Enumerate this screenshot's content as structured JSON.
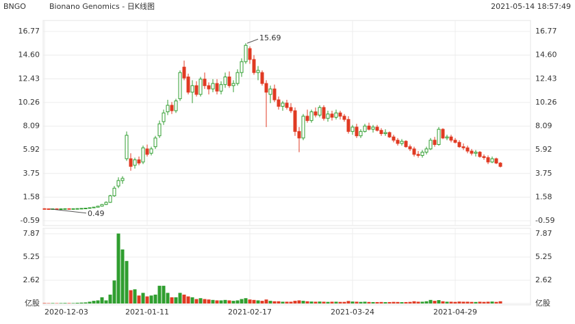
{
  "chart_data": {
    "type": "candlestick",
    "ticker": "BNGO",
    "title": "Bionano Genomics - 日K线图",
    "timestamp": "2021-05-14 18:57:49",
    "categories": [
      "2020-12-03",
      null,
      null,
      null,
      null,
      null,
      null,
      null,
      null,
      null,
      null,
      null,
      null,
      null,
      null,
      null,
      null,
      null,
      null,
      null,
      null,
      null,
      null,
      null,
      null,
      "2021-01-11",
      null,
      null,
      null,
      null,
      null,
      null,
      null,
      null,
      null,
      null,
      null,
      null,
      null,
      null,
      null,
      null,
      null,
      null,
      null,
      null,
      null,
      null,
      null,
      null,
      "2021-02-17",
      null,
      null,
      null,
      null,
      null,
      null,
      null,
      null,
      null,
      null,
      null,
      null,
      null,
      null,
      null,
      null,
      null,
      null,
      null,
      null,
      null,
      null,
      null,
      null,
      "2021-03-24",
      null,
      null,
      null,
      null,
      null,
      null,
      null,
      null,
      null,
      null,
      null,
      null,
      null,
      null,
      null,
      null,
      null,
      null,
      null,
      null,
      null,
      null,
      null,
      null,
      "2021-04-29",
      null,
      null,
      null,
      null,
      null,
      null,
      null,
      null,
      null,
      null,
      null
    ],
    "ohlc": [
      [
        0.52,
        0.55,
        0.5,
        0.51
      ],
      [
        0.51,
        0.53,
        0.49,
        0.5
      ],
      [
        0.5,
        0.53,
        0.5,
        0.51
      ],
      [
        0.51,
        0.53,
        0.5,
        0.5
      ],
      [
        0.5,
        0.52,
        0.5,
        0.51
      ],
      [
        0.51,
        0.54,
        0.5,
        0.52
      ],
      [
        0.52,
        0.54,
        0.5,
        0.51
      ],
      [
        0.51,
        0.53,
        0.5,
        0.52
      ],
      [
        0.52,
        0.55,
        0.51,
        0.53
      ],
      [
        0.53,
        0.57,
        0.52,
        0.55
      ],
      [
        0.55,
        0.59,
        0.53,
        0.57
      ],
      [
        0.57,
        0.63,
        0.55,
        0.61
      ],
      [
        0.61,
        0.69,
        0.59,
        0.66
      ],
      [
        0.65,
        0.8,
        0.63,
        0.75
      ],
      [
        0.75,
        0.95,
        0.72,
        0.9
      ],
      [
        0.9,
        1.2,
        0.85,
        1.1
      ],
      [
        1.1,
        1.8,
        1.05,
        1.7
      ],
      [
        1.7,
        2.6,
        1.6,
        2.4
      ],
      [
        2.6,
        3.4,
        2.4,
        3.1
      ],
      [
        3.1,
        3.5,
        2.8,
        3.3
      ],
      [
        5.1,
        7.6,
        4.9,
        7.25
      ],
      [
        5.1,
        5.6,
        4.0,
        4.4
      ],
      [
        4.5,
        5.2,
        4.2,
        5.0
      ],
      [
        5.0,
        5.3,
        4.5,
        4.7
      ],
      [
        4.8,
        6.3,
        4.6,
        6.1
      ],
      [
        6.0,
        6.4,
        5.3,
        5.5
      ],
      [
        5.6,
        6.2,
        5.4,
        6.0
      ],
      [
        6.2,
        7.2,
        6.0,
        7.0
      ],
      [
        7.2,
        8.6,
        7.0,
        8.3
      ],
      [
        8.5,
        9.6,
        8.2,
        9.3
      ],
      [
        9.4,
        10.5,
        9.1,
        10.0
      ],
      [
        10.0,
        10.3,
        9.2,
        9.5
      ],
      [
        9.5,
        10.6,
        9.3,
        10.4
      ],
      [
        10.6,
        13.2,
        10.4,
        13.0
      ],
      [
        13.5,
        14.1,
        12.3,
        12.5
      ],
      [
        12.6,
        12.9,
        11.0,
        11.2
      ],
      [
        11.2,
        12.3,
        10.2,
        11.8
      ],
      [
        11.8,
        12.2,
        10.8,
        11.0
      ],
      [
        11.0,
        12.6,
        10.8,
        12.4
      ],
      [
        12.4,
        13.0,
        11.5,
        11.8
      ],
      [
        11.8,
        12.1,
        11.0,
        11.5
      ],
      [
        11.5,
        12.4,
        11.2,
        12.0
      ],
      [
        12.0,
        12.4,
        11.0,
        11.3
      ],
      [
        11.3,
        12.2,
        11.0,
        11.9
      ],
      [
        11.9,
        13.0,
        11.6,
        12.6
      ],
      [
        12.6,
        13.1,
        11.6,
        11.8
      ],
      [
        11.8,
        12.3,
        11.2,
        12.0
      ],
      [
        12.0,
        13.3,
        11.8,
        13.0
      ],
      [
        13.0,
        14.3,
        12.6,
        14.0
      ],
      [
        14.0,
        15.69,
        13.8,
        15.5
      ],
      [
        15.2,
        15.4,
        13.8,
        14.2
      ],
      [
        14.2,
        14.6,
        12.8,
        13.0
      ],
      [
        13.0,
        13.6,
        12.3,
        13.2
      ],
      [
        13.0,
        13.2,
        11.8,
        12.0
      ],
      [
        12.0,
        12.3,
        8.0,
        11.2
      ],
      [
        11.0,
        11.8,
        10.2,
        11.5
      ],
      [
        11.5,
        11.9,
        10.3,
        10.5
      ],
      [
        10.5,
        10.8,
        9.6,
        9.9
      ],
      [
        9.9,
        10.4,
        9.5,
        10.2
      ],
      [
        10.2,
        10.5,
        9.6,
        9.8
      ],
      [
        9.8,
        10.2,
        9.3,
        9.5
      ],
      [
        9.5,
        9.8,
        7.2,
        7.6
      ],
      [
        7.6,
        8.0,
        5.7,
        7.0
      ],
      [
        7.0,
        9.2,
        6.8,
        9.0
      ],
      [
        9.0,
        9.6,
        8.4,
        8.6
      ],
      [
        8.6,
        9.6,
        8.4,
        9.4
      ],
      [
        9.4,
        9.8,
        8.9,
        9.1
      ],
      [
        9.1,
        10.0,
        8.9,
        9.8
      ],
      [
        9.8,
        10.0,
        8.6,
        8.8
      ],
      [
        8.8,
        9.5,
        8.5,
        9.2
      ],
      [
        9.2,
        9.5,
        8.6,
        8.9
      ],
      [
        8.9,
        9.6,
        8.7,
        9.3
      ],
      [
        9.3,
        9.5,
        8.7,
        9.0
      ],
      [
        9.0,
        9.2,
        8.5,
        8.7
      ],
      [
        8.7,
        9.0,
        7.4,
        7.6
      ],
      [
        7.6,
        8.2,
        7.3,
        8.0
      ],
      [
        8.0,
        8.3,
        7.0,
        7.2
      ],
      [
        7.2,
        7.8,
        7.0,
        7.6
      ],
      [
        7.6,
        8.3,
        7.5,
        8.1
      ],
      [
        8.1,
        8.4,
        7.7,
        7.8
      ],
      [
        7.8,
        8.2,
        7.5,
        8.0
      ],
      [
        8.0,
        8.2,
        7.6,
        7.7
      ],
      [
        7.7,
        7.9,
        7.2,
        7.4
      ],
      [
        7.4,
        7.8,
        7.2,
        7.5
      ],
      [
        7.5,
        7.6,
        7.0,
        7.1
      ],
      [
        7.1,
        7.3,
        6.6,
        6.8
      ],
      [
        6.8,
        7.0,
        6.3,
        6.5
      ],
      [
        6.5,
        6.9,
        6.3,
        6.7
      ],
      [
        6.7,
        6.8,
        6.1,
        6.2
      ],
      [
        6.2,
        6.4,
        5.8,
        6.0
      ],
      [
        6.0,
        6.2,
        5.3,
        5.5
      ],
      [
        5.5,
        5.8,
        5.2,
        5.4
      ],
      [
        5.4,
        5.9,
        5.2,
        5.7
      ],
      [
        5.7,
        6.2,
        5.5,
        6.0
      ],
      [
        6.0,
        7.0,
        5.9,
        6.8
      ],
      [
        6.8,
        7.1,
        6.2,
        6.4
      ],
      [
        6.4,
        8.0,
        6.3,
        7.8
      ],
      [
        7.8,
        7.9,
        6.9,
        7.0
      ],
      [
        7.0,
        7.3,
        6.8,
        7.1
      ],
      [
        7.1,
        7.3,
        6.6,
        6.8
      ],
      [
        6.8,
        7.0,
        6.5,
        6.6
      ],
      [
        6.6,
        6.8,
        6.1,
        6.2
      ],
      [
        6.2,
        6.5,
        5.9,
        6.1
      ],
      [
        6.1,
        6.3,
        5.6,
        5.8
      ],
      [
        5.8,
        6.0,
        5.4,
        5.6
      ],
      [
        5.6,
        5.9,
        5.3,
        5.7
      ],
      [
        5.7,
        5.8,
        5.2,
        5.3
      ],
      [
        5.3,
        5.5,
        5.0,
        5.2
      ],
      [
        5.2,
        5.4,
        4.6,
        4.8
      ],
      [
        4.8,
        5.3,
        4.7,
        5.1
      ],
      [
        5.1,
        5.2,
        4.6,
        4.7
      ],
      [
        4.7,
        4.8,
        4.3,
        4.4
      ]
    ],
    "volumes": [
      0.05,
      0.04,
      0.05,
      0.04,
      0.05,
      0.06,
      0.05,
      0.05,
      0.08,
      0.1,
      0.12,
      0.2,
      0.3,
      0.35,
      0.7,
      0.35,
      1.0,
      2.6,
      7.9,
      6.1,
      4.8,
      1.5,
      1.6,
      0.9,
      1.2,
      0.8,
      0.9,
      1.0,
      2.0,
      2.0,
      1.2,
      0.7,
      0.7,
      1.2,
      1.0,
      0.8,
      0.7,
      0.5,
      0.6,
      0.5,
      0.45,
      0.4,
      0.35,
      0.35,
      0.4,
      0.35,
      0.3,
      0.35,
      0.5,
      0.6,
      0.45,
      0.4,
      0.35,
      0.3,
      0.45,
      0.3,
      0.25,
      0.25,
      0.2,
      0.2,
      0.2,
      0.3,
      0.35,
      0.3,
      0.25,
      0.22,
      0.2,
      0.22,
      0.2,
      0.18,
      0.2,
      0.2,
      0.18,
      0.18,
      0.28,
      0.22,
      0.2,
      0.18,
      0.2,
      0.17,
      0.16,
      0.16,
      0.17,
      0.15,
      0.16,
      0.18,
      0.17,
      0.15,
      0.16,
      0.18,
      0.25,
      0.2,
      0.2,
      0.25,
      0.4,
      0.3,
      0.38,
      0.25,
      0.2,
      0.2,
      0.18,
      0.22,
      0.2,
      0.2,
      0.18,
      0.17,
      0.2,
      0.18,
      0.2,
      0.22,
      0.18,
      0.25
    ],
    "ylim": [
      -0.59,
      16.77
    ],
    "yticks": [
      16.77,
      {
        "value": 14.6,
        "label": "14.60"
      },
      12.43,
      10.26,
      8.09,
      5.92,
      3.75,
      1.58,
      -0.59
    ],
    "y2lim": [
      0,
      7.87
    ],
    "y2ticks": [
      7.87,
      5.25,
      2.62,
      {
        "value": 0,
        "label": "亿股"
      }
    ],
    "max_label": "15.69",
    "min_label": "0.49",
    "up_color": "#2f9e2f",
    "down_color": "#e03a23",
    "grid": true
  }
}
